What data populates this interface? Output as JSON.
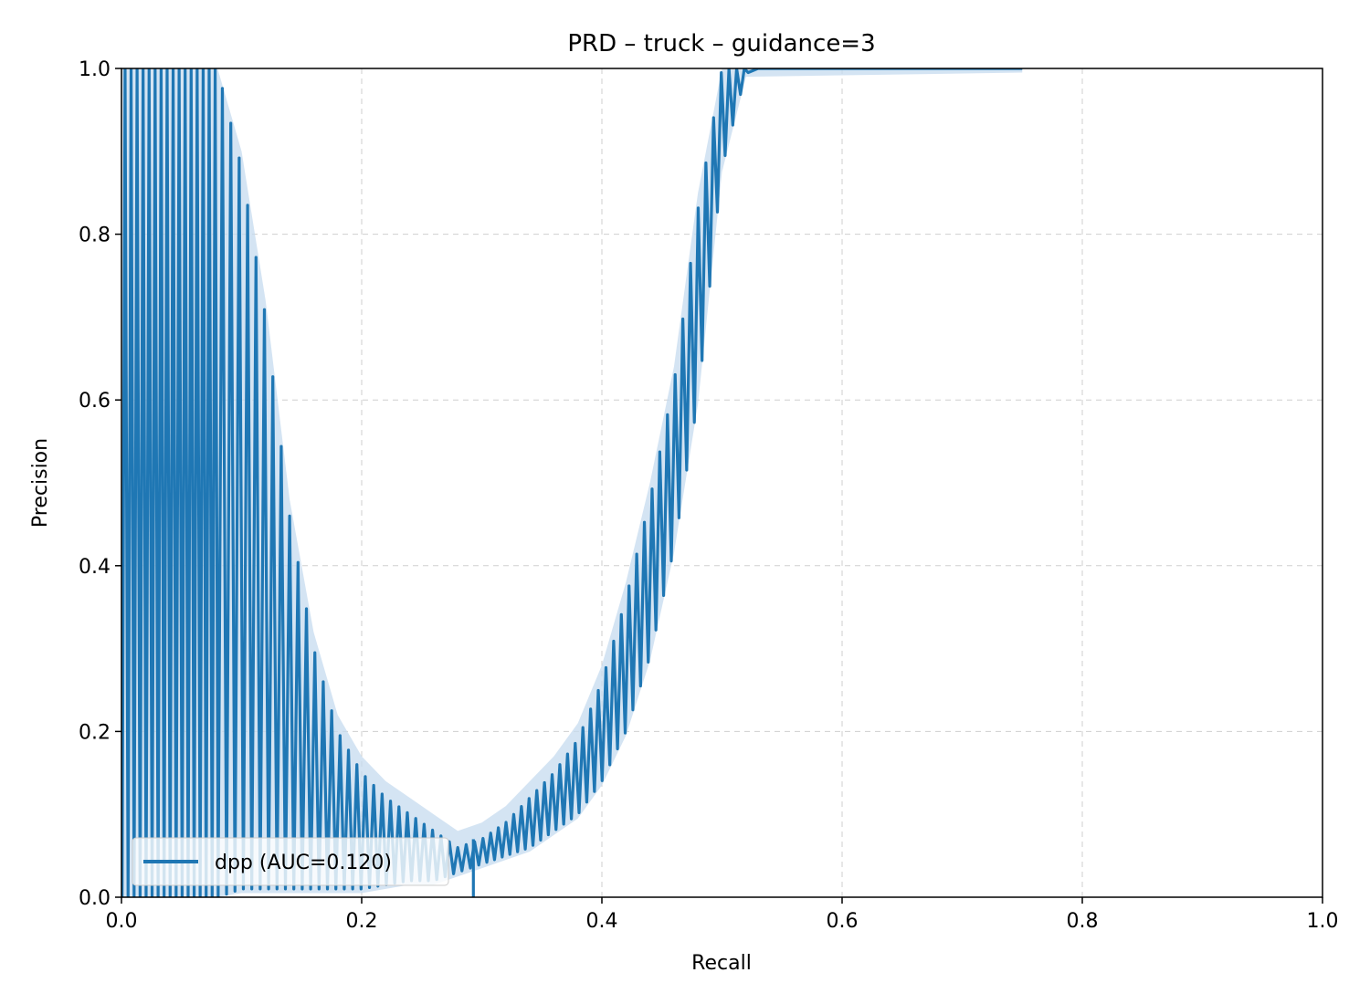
{
  "chart_data": {
    "type": "line",
    "title": "PRD – truck – guidance=3",
    "xlabel": "Recall",
    "ylabel": "Precision",
    "xlim": [
      0.0,
      1.0
    ],
    "ylim": [
      0.0,
      1.0
    ],
    "xticks": [
      "0.0",
      "0.2",
      "0.4",
      "0.6",
      "0.8",
      "1.0"
    ],
    "yticks": [
      "0.0",
      "0.2",
      "0.4",
      "0.6",
      "0.8",
      "1.0"
    ],
    "grid": true,
    "legend_position": "lower-left",
    "colors": {
      "line": "#1f77b4",
      "band": "#c6dbef"
    },
    "series": [
      {
        "name": "dpp (AUC=0.120)",
        "envelope": {
          "recall": [
            0.0,
            0.02,
            0.04,
            0.06,
            0.08,
            0.1,
            0.12,
            0.14,
            0.16,
            0.18,
            0.2,
            0.22,
            0.24,
            0.26,
            0.28,
            0.3,
            0.32,
            0.34,
            0.36,
            0.38,
            0.4,
            0.42,
            0.44,
            0.46,
            0.48,
            0.5,
            0.52,
            0.75
          ],
          "upper": [
            1.0,
            1.0,
            1.0,
            1.0,
            1.0,
            0.88,
            0.7,
            0.46,
            0.3,
            0.2,
            0.15,
            0.12,
            0.1,
            0.08,
            0.06,
            0.07,
            0.09,
            0.12,
            0.15,
            0.19,
            0.26,
            0.36,
            0.48,
            0.62,
            0.83,
            1.0,
            1.0,
            1.0
          ],
          "lower": [
            0.0,
            0.0,
            0.0,
            0.0,
            0.0,
            0.01,
            0.01,
            0.01,
            0.01,
            0.01,
            0.01,
            0.015,
            0.02,
            0.02,
            0.03,
            0.04,
            0.05,
            0.06,
            0.08,
            0.1,
            0.14,
            0.2,
            0.29,
            0.42,
            0.6,
            0.88,
            0.995,
            1.0
          ]
        }
      }
    ]
  }
}
